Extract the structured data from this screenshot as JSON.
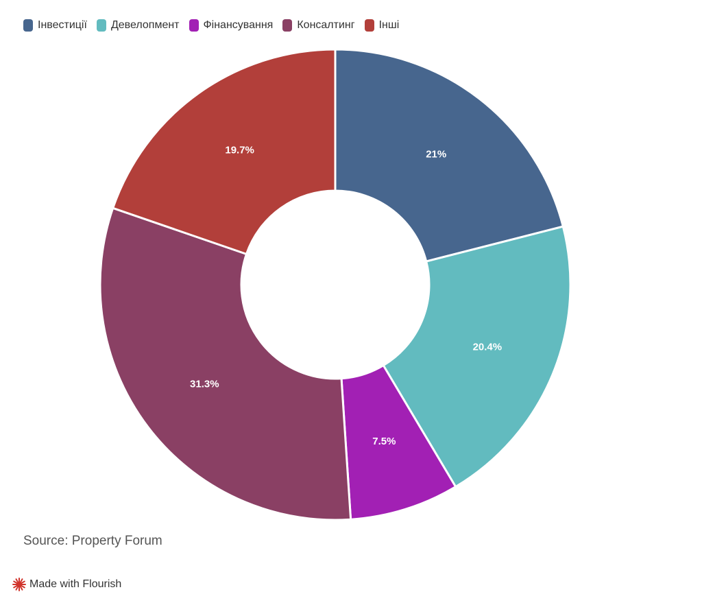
{
  "chart_data": {
    "type": "pie",
    "subtype": "donut",
    "categories": [
      "Інвестиції",
      "Девелопмент",
      "Фінансування",
      "Консалтинг",
      "Інші"
    ],
    "values": [
      21,
      20.4,
      7.5,
      31.3,
      19.7
    ],
    "data_labels": [
      "21%",
      "20.4%",
      "7.5%",
      "31.3%",
      "19.7%"
    ],
    "colors": [
      "#47668e",
      "#62bbbf",
      "#a220b4",
      "#8a4064",
      "#b23f3a"
    ],
    "legend_position": "top-left",
    "start_angle": "12 o'clock",
    "direction": "clockwise"
  },
  "source_text": "Source: Property Forum",
  "credit": {
    "text": "Made with Flourish",
    "icon": "flourish-logo-icon",
    "icon_color": "#d0332b"
  }
}
